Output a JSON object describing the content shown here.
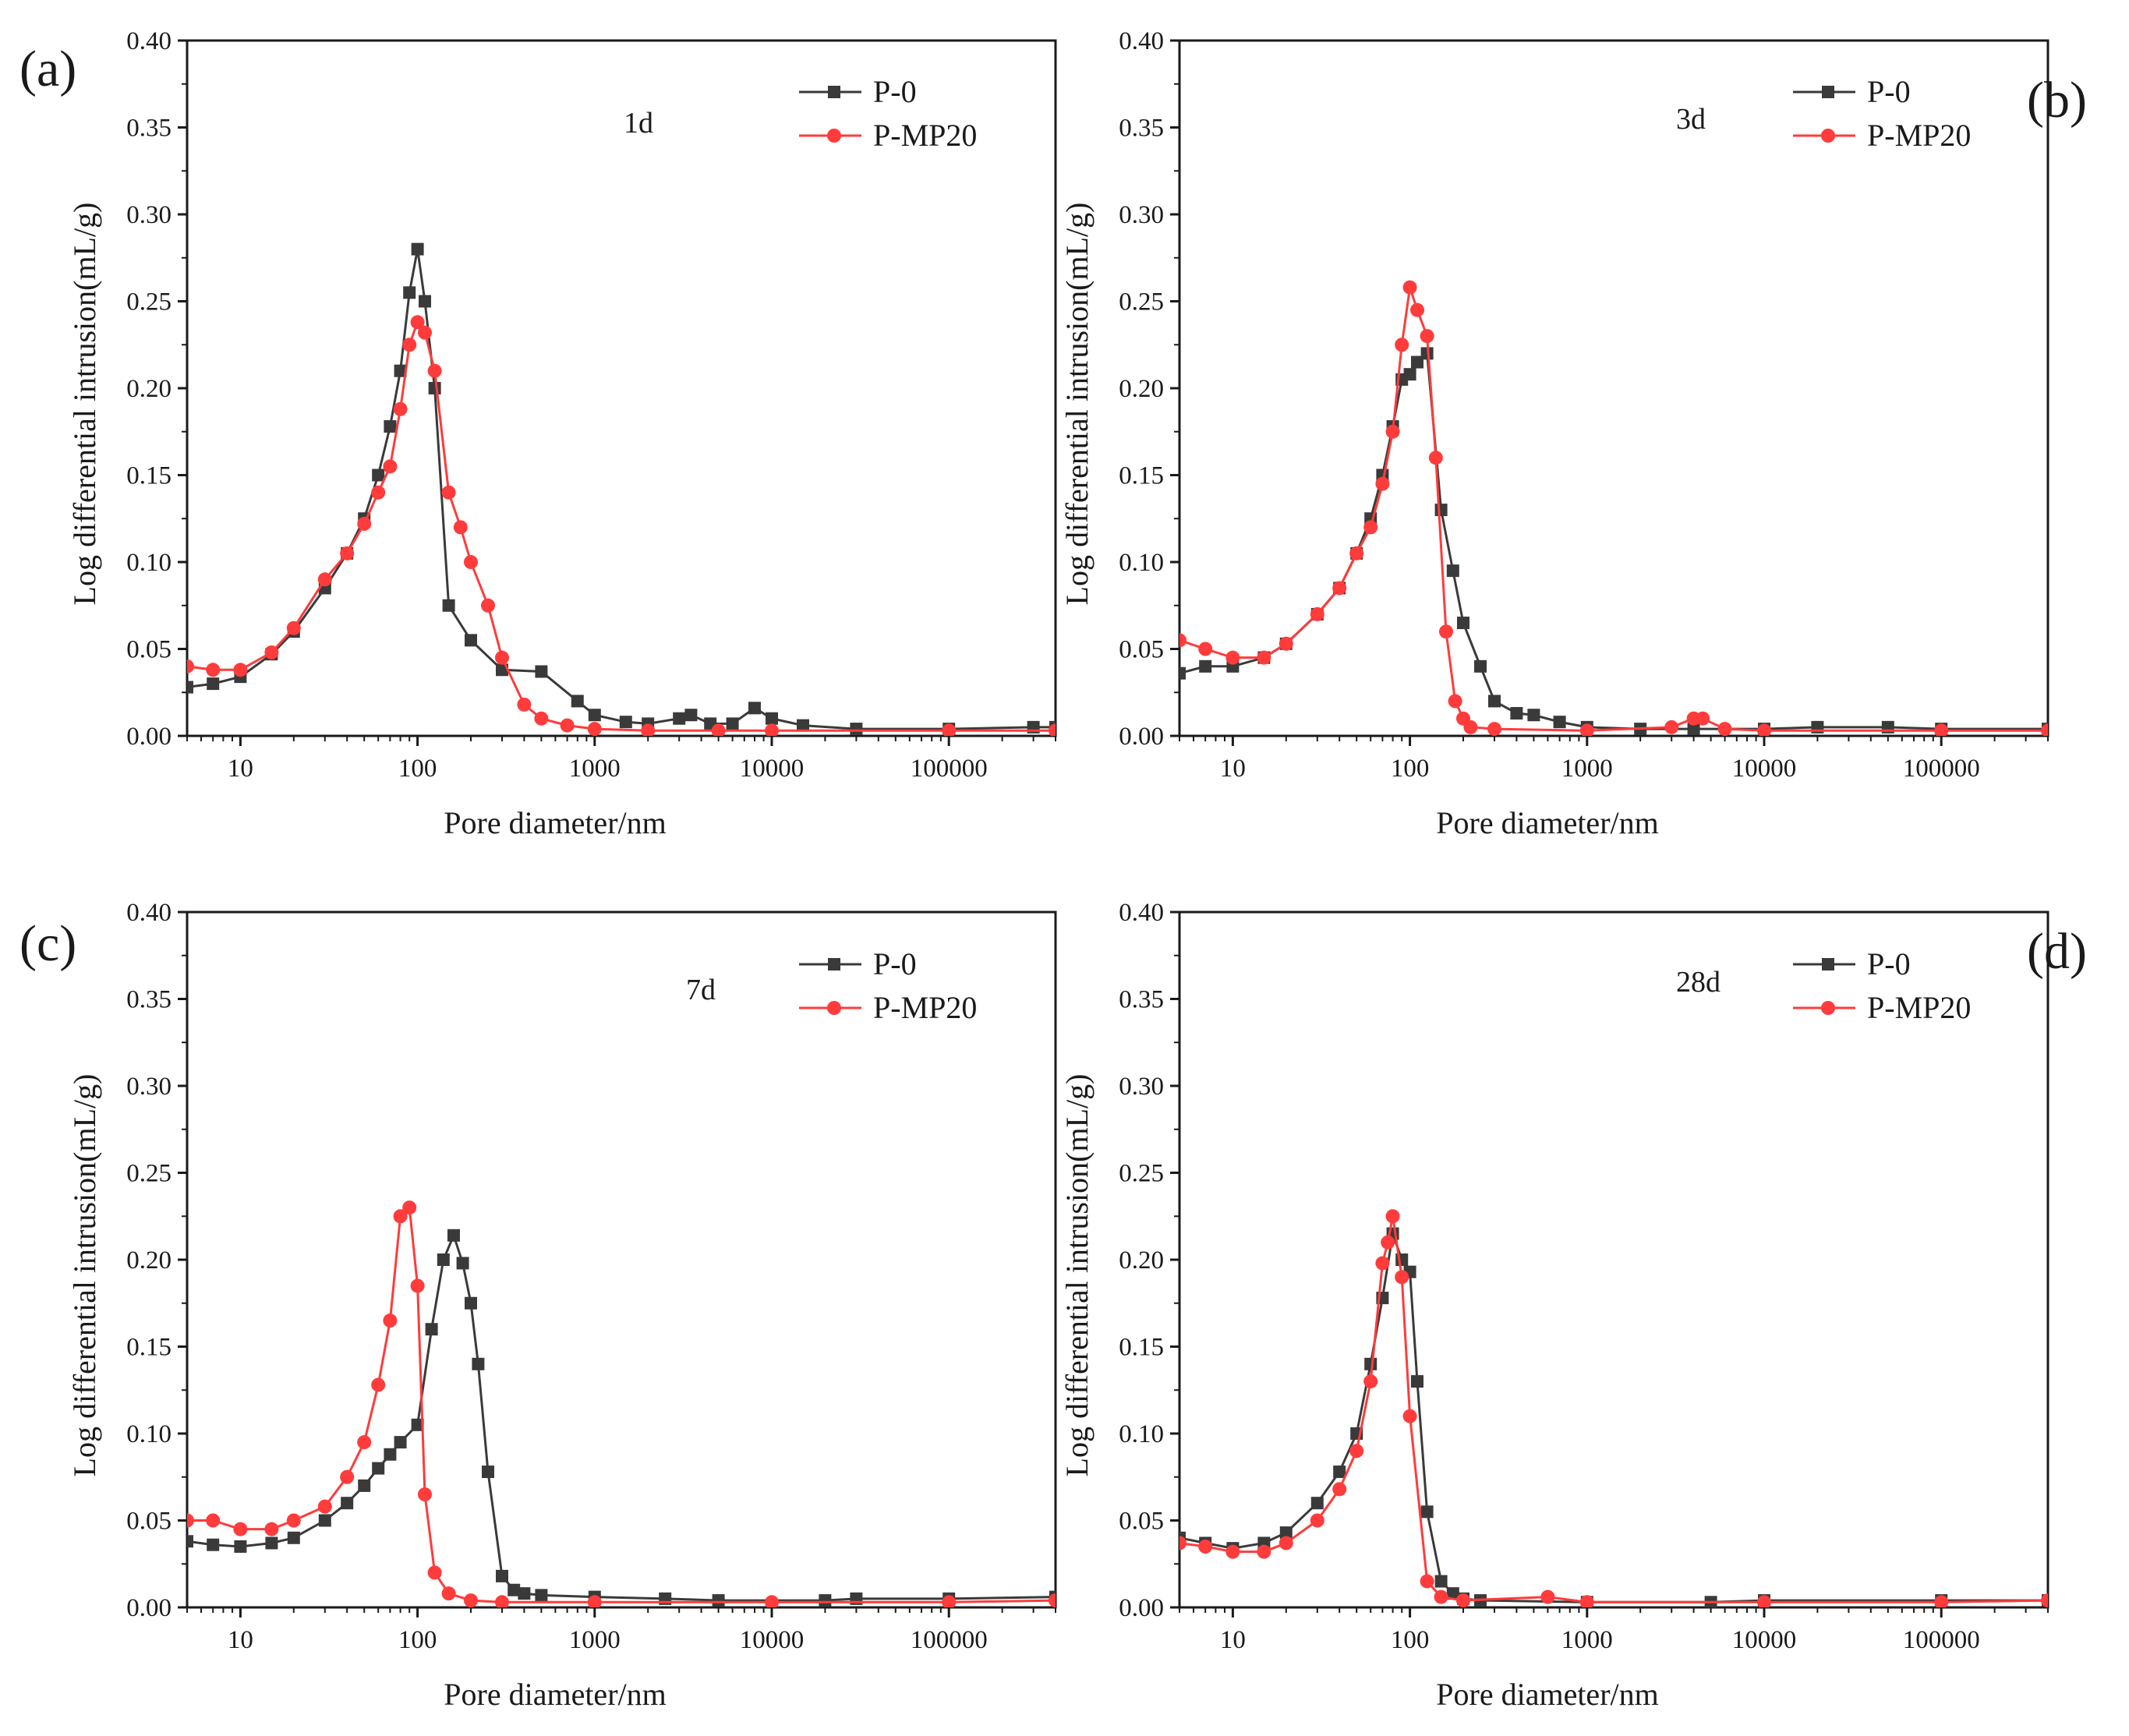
{
  "figure": {
    "colors": {
      "p0": "#3a3a3a",
      "pmp20": "#ff3b3b",
      "axis": "#1a1a1a"
    }
  },
  "chart_data": [
    {
      "type": "line",
      "panel": "(a)",
      "annotation": "1d",
      "xlabel": "Pore diameter/nm",
      "ylabel": "Log differential intrusion(mL/g)",
      "xscale": "log",
      "xlim": [
        5,
        400000
      ],
      "ylim": [
        0,
        0.4
      ],
      "xticks": [
        10,
        100,
        1000,
        10000,
        100000
      ],
      "xtick_labels": [
        "10",
        "100",
        "1000",
        "10000",
        "100000"
      ],
      "yticks": [
        0,
        0.05,
        0.1,
        0.15,
        0.2,
        0.25,
        0.3,
        0.35,
        0.4
      ],
      "ytick_labels": [
        "0.00",
        "0.05",
        "0.10",
        "0.15",
        "0.20",
        "0.25",
        "0.30",
        "0.35",
        "0.40"
      ],
      "legend": [
        "P-0",
        "P-MP20"
      ],
      "legend_position": "top-right",
      "series": [
        {
          "name": "P-0",
          "marker": "square",
          "color": "#3a3a3a",
          "x": [
            5,
            7,
            10,
            15,
            20,
            30,
            40,
            50,
            60,
            70,
            80,
            90,
            100,
            110,
            125,
            150,
            200,
            300,
            500,
            800,
            1000,
            1500,
            2000,
            3000,
            3500,
            4500,
            6000,
            8000,
            10000,
            15000,
            30000,
            100000,
            300000,
            400000
          ],
          "y": [
            0.028,
            0.03,
            0.034,
            0.047,
            0.06,
            0.085,
            0.105,
            0.125,
            0.15,
            0.178,
            0.21,
            0.255,
            0.28,
            0.25,
            0.2,
            0.075,
            0.055,
            0.038,
            0.037,
            0.02,
            0.012,
            0.008,
            0.007,
            0.01,
            0.012,
            0.007,
            0.007,
            0.016,
            0.01,
            0.006,
            0.004,
            0.004,
            0.005,
            0.005
          ]
        },
        {
          "name": "P-MP20",
          "marker": "circle",
          "color": "#ff3b3b",
          "x": [
            5,
            7,
            10,
            15,
            20,
            30,
            40,
            50,
            60,
            70,
            80,
            90,
            100,
            110,
            125,
            150,
            175,
            200,
            250,
            300,
            400,
            500,
            700,
            1000,
            2000,
            5000,
            10000,
            100000,
            400000
          ],
          "y": [
            0.04,
            0.038,
            0.038,
            0.048,
            0.062,
            0.09,
            0.105,
            0.122,
            0.14,
            0.155,
            0.188,
            0.225,
            0.238,
            0.232,
            0.21,
            0.14,
            0.12,
            0.1,
            0.075,
            0.045,
            0.018,
            0.01,
            0.006,
            0.004,
            0.003,
            0.003,
            0.003,
            0.003,
            0.003
          ]
        }
      ]
    },
    {
      "type": "line",
      "panel": "(b)",
      "annotation": "3d",
      "xlabel": "Pore diameter/nm",
      "ylabel": "Log differential intrusion(mL/g)",
      "xscale": "log",
      "xlim": [
        5,
        400000
      ],
      "ylim": [
        0,
        0.4
      ],
      "xticks": [
        10,
        100,
        1000,
        10000,
        100000
      ],
      "xtick_labels": [
        "10",
        "100",
        "1000",
        "10000",
        "100000"
      ],
      "yticks": [
        0,
        0.05,
        0.1,
        0.15,
        0.2,
        0.25,
        0.3,
        0.35,
        0.4
      ],
      "ytick_labels": [
        "0.00",
        "0.05",
        "0.10",
        "0.15",
        "0.20",
        "0.25",
        "0.30",
        "0.35",
        "0.40"
      ],
      "legend": [
        "P-0",
        "P-MP20"
      ],
      "legend_position": "top-right",
      "series": [
        {
          "name": "P-0",
          "marker": "square",
          "color": "#3a3a3a",
          "x": [
            5,
            7,
            10,
            15,
            20,
            30,
            40,
            50,
            60,
            70,
            80,
            90,
            100,
            110,
            125,
            150,
            175,
            200,
            250,
            300,
            400,
            500,
            700,
            1000,
            2000,
            4000,
            10000,
            20000,
            50000,
            100000,
            400000
          ],
          "y": [
            0.036,
            0.04,
            0.04,
            0.045,
            0.053,
            0.07,
            0.085,
            0.105,
            0.125,
            0.15,
            0.178,
            0.205,
            0.208,
            0.215,
            0.22,
            0.13,
            0.095,
            0.065,
            0.04,
            0.02,
            0.013,
            0.012,
            0.008,
            0.005,
            0.004,
            0.004,
            0.004,
            0.005,
            0.005,
            0.004,
            0.004
          ]
        },
        {
          "name": "P-MP20",
          "marker": "circle",
          "color": "#ff3b3b",
          "x": [
            5,
            7,
            10,
            15,
            20,
            30,
            40,
            50,
            60,
            70,
            80,
            90,
            100,
            110,
            125,
            140,
            160,
            180,
            200,
            220,
            300,
            1000,
            3000,
            4000,
            4500,
            6000,
            10000,
            100000,
            400000
          ],
          "y": [
            0.055,
            0.05,
            0.045,
            0.045,
            0.053,
            0.07,
            0.085,
            0.105,
            0.12,
            0.145,
            0.175,
            0.225,
            0.258,
            0.245,
            0.23,
            0.16,
            0.06,
            0.02,
            0.01,
            0.005,
            0.004,
            0.003,
            0.005,
            0.01,
            0.01,
            0.004,
            0.003,
            0.003,
            0.003
          ]
        }
      ]
    },
    {
      "type": "line",
      "panel": "(c)",
      "annotation": "7d",
      "xlabel": "Pore diameter/nm",
      "ylabel": "Log differential intrusion(mL/g)",
      "xscale": "log",
      "xlim": [
        5,
        400000
      ],
      "ylim": [
        0,
        0.4
      ],
      "xticks": [
        10,
        100,
        1000,
        10000,
        100000
      ],
      "xtick_labels": [
        "10",
        "100",
        "1000",
        "10000",
        "100000"
      ],
      "yticks": [
        0,
        0.05,
        0.1,
        0.15,
        0.2,
        0.25,
        0.3,
        0.35,
        0.4
      ],
      "ytick_labels": [
        "0.00",
        "0.05",
        "0.10",
        "0.15",
        "0.20",
        "0.25",
        "0.30",
        "0.35",
        "0.40"
      ],
      "legend": [
        "P-0",
        "P-MP20"
      ],
      "legend_position": "top-right",
      "series": [
        {
          "name": "P-0",
          "marker": "square",
          "color": "#3a3a3a",
          "x": [
            5,
            7,
            10,
            15,
            20,
            30,
            40,
            50,
            60,
            70,
            80,
            100,
            120,
            140,
            160,
            180,
            200,
            220,
            250,
            300,
            350,
            400,
            500,
            1000,
            2500,
            5000,
            20000,
            30000,
            100000,
            400000
          ],
          "y": [
            0.038,
            0.036,
            0.035,
            0.037,
            0.04,
            0.05,
            0.06,
            0.07,
            0.08,
            0.088,
            0.095,
            0.105,
            0.16,
            0.2,
            0.214,
            0.198,
            0.175,
            0.14,
            0.078,
            0.018,
            0.01,
            0.008,
            0.007,
            0.006,
            0.005,
            0.004,
            0.004,
            0.005,
            0.005,
            0.006
          ]
        },
        {
          "name": "P-MP20",
          "marker": "circle",
          "color": "#ff3b3b",
          "x": [
            5,
            7,
            10,
            15,
            20,
            30,
            40,
            50,
            60,
            70,
            80,
            90,
            100,
            110,
            125,
            150,
            200,
            300,
            1000,
            10000,
            100000,
            400000
          ],
          "y": [
            0.05,
            0.05,
            0.045,
            0.045,
            0.05,
            0.058,
            0.075,
            0.095,
            0.128,
            0.165,
            0.225,
            0.23,
            0.185,
            0.065,
            0.02,
            0.008,
            0.004,
            0.003,
            0.003,
            0.003,
            0.003,
            0.004
          ]
        }
      ]
    },
    {
      "type": "line",
      "panel": "(d)",
      "annotation": "28d",
      "xlabel": "Pore diameter/nm",
      "ylabel": "Log differential intrusion(mL/g)",
      "xscale": "log",
      "xlim": [
        5,
        400000
      ],
      "ylim": [
        0,
        0.4
      ],
      "xticks": [
        10,
        100,
        1000,
        10000,
        100000
      ],
      "xtick_labels": [
        "10",
        "100",
        "1000",
        "10000",
        "100000"
      ],
      "yticks": [
        0,
        0.05,
        0.1,
        0.15,
        0.2,
        0.25,
        0.3,
        0.35,
        0.4
      ],
      "ytick_labels": [
        "0.00",
        "0.05",
        "0.10",
        "0.15",
        "0.20",
        "0.25",
        "0.30",
        "0.35",
        "0.40"
      ],
      "legend": [
        "P-0",
        "P-MP20"
      ],
      "legend_position": "top-right",
      "series": [
        {
          "name": "P-0",
          "marker": "square",
          "color": "#3a3a3a",
          "x": [
            5,
            7,
            10,
            15,
            20,
            30,
            40,
            50,
            60,
            70,
            80,
            90,
            100,
            110,
            125,
            150,
            175,
            200,
            250,
            1000,
            5000,
            10000,
            100000,
            400000
          ],
          "y": [
            0.04,
            0.037,
            0.034,
            0.037,
            0.043,
            0.06,
            0.078,
            0.1,
            0.14,
            0.178,
            0.215,
            0.2,
            0.193,
            0.13,
            0.055,
            0.015,
            0.008,
            0.005,
            0.004,
            0.003,
            0.003,
            0.004,
            0.004,
            0.004
          ]
        },
        {
          "name": "P-MP20",
          "marker": "circle",
          "color": "#ff3b3b",
          "x": [
            5,
            7,
            10,
            15,
            20,
            30,
            40,
            50,
            60,
            70,
            75,
            80,
            90,
            100,
            125,
            150,
            200,
            600,
            1000,
            10000,
            100000,
            400000
          ],
          "y": [
            0.037,
            0.035,
            0.032,
            0.032,
            0.037,
            0.05,
            0.068,
            0.09,
            0.13,
            0.198,
            0.21,
            0.225,
            0.19,
            0.11,
            0.015,
            0.006,
            0.004,
            0.006,
            0.003,
            0.003,
            0.003,
            0.004
          ]
        }
      ]
    }
  ]
}
